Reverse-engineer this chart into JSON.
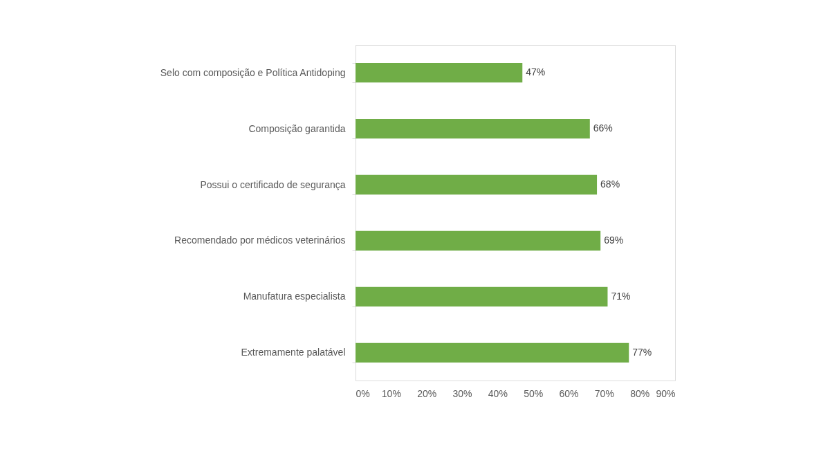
{
  "chart_data": {
    "type": "bar",
    "orientation": "horizontal",
    "categories": [
      "Selo com composição e Política Antidoping",
      "Composição garantida",
      "Possui o certificado de segurança",
      "Recomendado por médicos veterinários",
      "Manufatura especialista",
      "Extremamente palatável"
    ],
    "values": [
      47,
      66,
      68,
      69,
      71,
      77
    ],
    "value_labels": [
      "47%",
      "66%",
      "68%",
      "69%",
      "71%",
      "77%"
    ],
    "color": "#70ad47",
    "xlim": [
      0,
      90
    ],
    "xticks": [
      {
        "value": 0,
        "label": "0%"
      },
      {
        "value": 10,
        "label": "10%"
      },
      {
        "value": 20,
        "label": "20%"
      },
      {
        "value": 30,
        "label": "30%"
      },
      {
        "value": 40,
        "label": "40%"
      },
      {
        "value": 50,
        "label": "50%"
      },
      {
        "value": 60,
        "label": "60%"
      },
      {
        "value": 70,
        "label": "70%"
      },
      {
        "value": 80,
        "label": "80%"
      },
      {
        "value": 90,
        "label": "90%"
      }
    ],
    "grid": false
  }
}
